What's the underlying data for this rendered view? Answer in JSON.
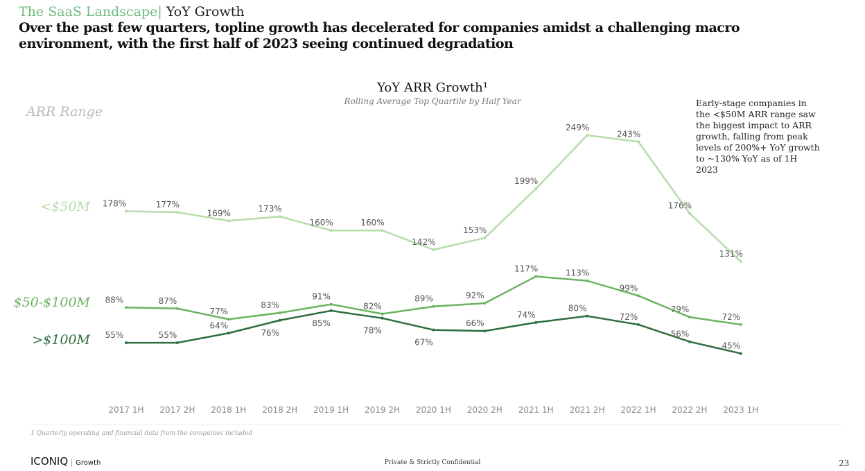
{
  "header": {
    "section": "The SaaS Landscape|",
    "topic": "YoY Growth",
    "headline": "Over the past few quarters, topline growth has decelerated for companies amidst a challenging macro environment, with the first half of 2023 seeing continued degradation"
  },
  "chart_data": {
    "type": "line",
    "title": "YoY ARR Growth¹",
    "subtitle": "Rolling Average Top Quartile by Half Year",
    "legend_title": "ARR Range",
    "categories": [
      "2017 1H",
      "2017 2H",
      "2018 1H",
      "2018 2H",
      "2019 1H",
      "2019 2H",
      "2020 1H",
      "2020 2H",
      "2021 1H",
      "2021 2H",
      "2022 1H",
      "2022 2H",
      "2023 1H"
    ],
    "series": [
      {
        "name": "<$50M",
        "color": "#b5dcab",
        "values": [
          178,
          177,
          169,
          173,
          160,
          160,
          142,
          153,
          199,
          249,
          243,
          176,
          131
        ]
      },
      {
        "name": "$50-$100M",
        "color": "#6bb360",
        "values": [
          88,
          87,
          77,
          83,
          91,
          82,
          89,
          92,
          117,
          113,
          99,
          79,
          72
        ]
      },
      {
        "name": ">$100M",
        "color": "#2f6e3e",
        "values": [
          55,
          55,
          64,
          76,
          85,
          78,
          67,
          66,
          74,
          80,
          72,
          56,
          45
        ]
      }
    ],
    "value_suffix": "%",
    "annotation": "Early-stage companies in the <$50M ARR range saw the biggest impact to ARR growth, falling from peak levels of 200%+ YoY growth to ~130% YoY as of 1H 2023"
  },
  "footer": {
    "footnote": "1 Quarterly operating and financial data from the companies included",
    "logo": "ICONIQ",
    "logo_sub": "Growth",
    "confidential": "Private & Strictly Confidential",
    "page": "23"
  }
}
